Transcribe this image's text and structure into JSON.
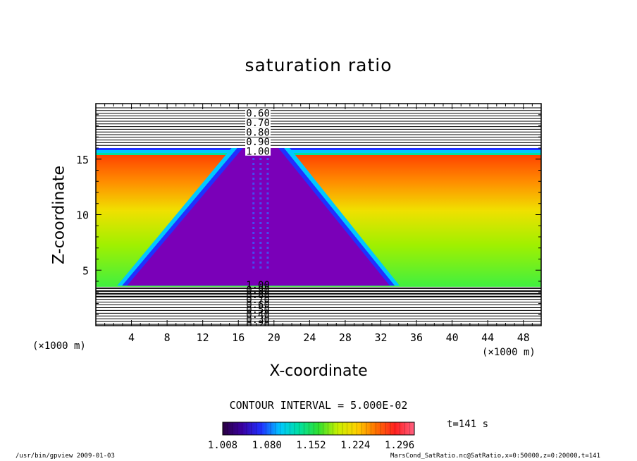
{
  "chart_data": {
    "type": "heatmap",
    "title": "saturation ratio",
    "xlabel": "X-coordinate",
    "ylabel": "Z-coordinate",
    "x_unit": "(×1000 m)",
    "y_unit": "(×1000 m)",
    "xlim": [
      0,
      50
    ],
    "ylim": [
      0,
      20
    ],
    "x_ticks": [
      4,
      8,
      12,
      16,
      20,
      24,
      28,
      32,
      36,
      40,
      44,
      48
    ],
    "x_tick_labels": [
      "4",
      "8",
      "12",
      "16",
      "20",
      "24",
      "28",
      "32",
      "36",
      "40",
      "44",
      "48"
    ],
    "y_ticks": [
      5,
      10,
      15
    ],
    "y_tick_labels": [
      "5",
      "10",
      "15"
    ],
    "contour_labels_upper": [
      "0.60",
      "0.70",
      "0.80",
      "0.90",
      "1.00"
    ],
    "contour_labels_lower": [
      "1.00",
      "0.90",
      "0.80",
      "0.70",
      "0.60",
      "0.50",
      "0.40",
      "0.30",
      "0.20"
    ],
    "contour_interval": "CONTOUR INTERVAL = 5.000E-02",
    "colorbar": {
      "min": 1.008,
      "max": 1.32,
      "ticks": [
        1.008,
        1.08,
        1.152,
        1.224,
        1.296
      ],
      "tick_labels": [
        "1.008",
        "1.080",
        "1.152",
        "1.224",
        "1.296"
      ],
      "colors": [
        "#2a0040",
        "#3a00a0",
        "#2030ff",
        "#00c8ff",
        "#00e0a0",
        "#30e030",
        "#c8f000",
        "#ffd000",
        "#ff7000",
        "#ff2020",
        "#ff6080"
      ]
    },
    "field": {
      "supersaturated_layer_z": [
        3.5,
        16
      ],
      "triangle_apex_x": [
        16.5,
        20.5
      ],
      "triangle_apex_z": 16,
      "triangle_base_x": [
        3.5,
        33
      ],
      "triangle_base_z": 3.6,
      "background_colors": [
        "#40f040",
        "#a0f000",
        "#f0e000",
        "#ff9000",
        "#ff3000"
      ],
      "triangle_color": "#7a00b8"
    },
    "time_label": "t=141 s"
  },
  "footer": {
    "left": "/usr/bin/gpview   2009-01-03",
    "right": "MarsCond_SatRatio.nc@SatRatio,x=0:50000,z=0:20000,t=141"
  }
}
